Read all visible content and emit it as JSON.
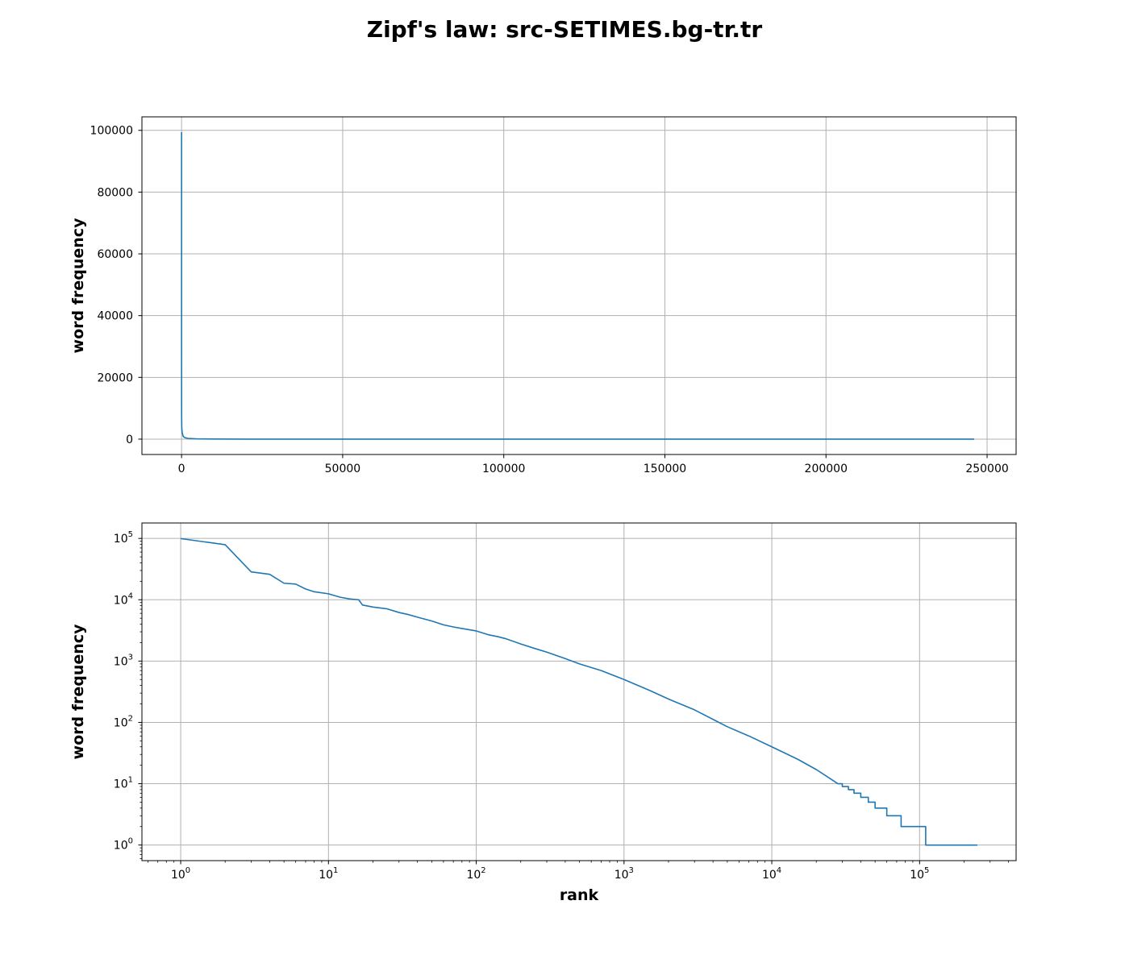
{
  "figure": {
    "suptitle": "Zipf's law: src-SETIMES.bg-tr.tr"
  },
  "chart_data": [
    {
      "type": "line",
      "xscale": "linear",
      "yscale": "linear",
      "xlabel": "",
      "ylabel": "word frequency",
      "xlim": [
        -12300,
        259000
      ],
      "ylim": [
        -4970,
        104370
      ],
      "xticks": [
        0,
        50000,
        100000,
        150000,
        200000,
        250000
      ],
      "xtick_labels": [
        "0",
        "50000",
        "100000",
        "150000",
        "200000",
        "250000"
      ],
      "yticks": [
        0,
        20000,
        40000,
        60000,
        80000,
        100000
      ],
      "ytick_labels": [
        "0",
        "20000",
        "40000",
        "60000",
        "80000",
        "100000"
      ],
      "grid": true,
      "color": "#1f77b4",
      "x": [
        1,
        2,
        3,
        5,
        10,
        20,
        50,
        100,
        200,
        500,
        1000,
        2000,
        5000,
        10000,
        20000,
        50000,
        110000,
        246000
      ],
      "y": [
        99400,
        79000,
        28500,
        18600,
        12500,
        7600,
        4500,
        3200,
        2100,
        900,
        500,
        240,
        85,
        40,
        17,
        4,
        1,
        1
      ]
    },
    {
      "type": "line",
      "xscale": "log",
      "yscale": "log",
      "xlabel": "rank",
      "ylabel": "word frequency",
      "xlim": [
        0.5466,
        450000
      ],
      "ylim": [
        0.5566,
        178600
      ],
      "xticks": [
        1,
        10,
        100,
        1000,
        10000,
        100000
      ],
      "xtick_labels": [
        {
          "base": "10",
          "exp": "0"
        },
        {
          "base": "10",
          "exp": "1"
        },
        {
          "base": "10",
          "exp": "2"
        },
        {
          "base": "10",
          "exp": "3"
        },
        {
          "base": "10",
          "exp": "4"
        },
        {
          "base": "10",
          "exp": "5"
        }
      ],
      "yticks": [
        1,
        10,
        100,
        1000,
        10000,
        100000
      ],
      "ytick_labels": [
        {
          "base": "10",
          "exp": "0"
        },
        {
          "base": "10",
          "exp": "1"
        },
        {
          "base": "10",
          "exp": "2"
        },
        {
          "base": "10",
          "exp": "3"
        },
        {
          "base": "10",
          "exp": "4"
        },
        {
          "base": "10",
          "exp": "5"
        }
      ],
      "grid": true,
      "color": "#1f77b4",
      "x": [
        1,
        2,
        3,
        4,
        5,
        6,
        7,
        8,
        10,
        12,
        14,
        16,
        17,
        20,
        25,
        30,
        35,
        40,
        50,
        60,
        70,
        80,
        100,
        120,
        140,
        160,
        200,
        250,
        300,
        400,
        500,
        700,
        1000,
        1500,
        2000,
        3000,
        5000,
        7000,
        10000,
        15000,
        20000,
        25000,
        28000,
        30000,
        33000,
        36000,
        40000,
        45000,
        50000,
        60000,
        75000,
        110000,
        246000
      ],
      "y": [
        99400,
        79000,
        28500,
        26000,
        18600,
        18000,
        15000,
        13500,
        12500,
        11000,
        10300,
        10000,
        8200,
        7600,
        7100,
        6200,
        5700,
        5200,
        4500,
        3900,
        3600,
        3400,
        3100,
        2700,
        2500,
        2300,
        1900,
        1600,
        1400,
        1100,
        900,
        700,
        500,
        330,
        240,
        160,
        85,
        60,
        40,
        25,
        17,
        12,
        10,
        9,
        8,
        7,
        6,
        5,
        4,
        3,
        2,
        1,
        1
      ]
    }
  ]
}
